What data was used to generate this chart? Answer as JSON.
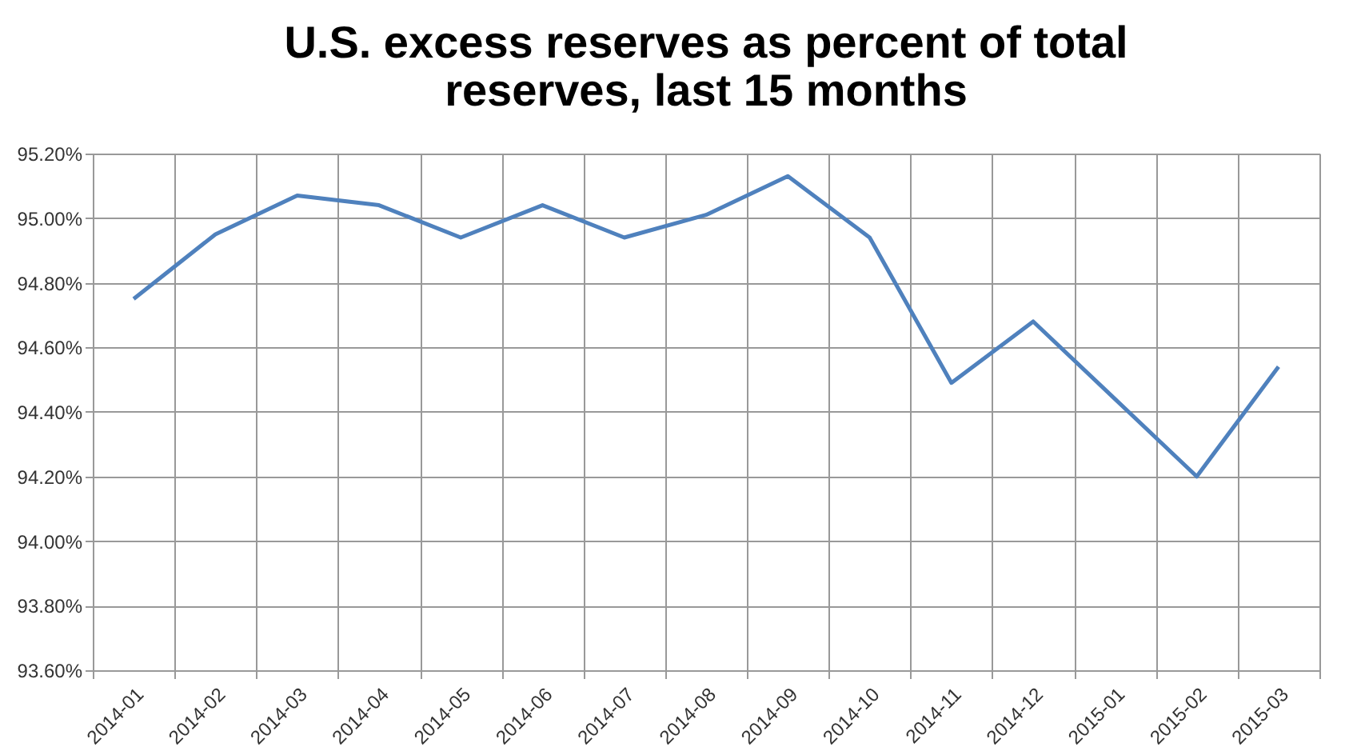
{
  "chart_data": {
    "type": "line",
    "title": [
      "U.S. excess reserves as percent of total",
      "reserves, last 15 months"
    ],
    "categories": [
      "2014-01",
      "2014-02",
      "2014-03",
      "2014-04",
      "2014-05",
      "2014-06",
      "2014-07",
      "2014-08",
      "2014-09",
      "2014-10",
      "2014-11",
      "2014-12",
      "2015-01",
      "2015-02",
      "2015-03"
    ],
    "series": [
      {
        "color": "#4f81bd",
        "values": [
          94.75,
          94.95,
          95.07,
          95.04,
          94.94,
          95.04,
          94.94,
          95.01,
          95.13,
          94.94,
          94.49,
          94.68,
          94.44,
          94.2,
          94.54
        ]
      }
    ],
    "ylim": [
      93.6,
      95.2
    ],
    "yticks": [
      {
        "value": 93.6,
        "label": "93.60%"
      },
      {
        "value": 93.8,
        "label": "93.80%"
      },
      {
        "value": 94.0,
        "label": "94.00%"
      },
      {
        "value": 94.2,
        "label": "94.20%"
      },
      {
        "value": 94.4,
        "label": "94.40%"
      },
      {
        "value": 94.6,
        "label": "94.60%"
      },
      {
        "value": 94.8,
        "label": "94.80%"
      },
      {
        "value": 95.0,
        "label": "95.00%"
      },
      {
        "value": 95.2,
        "label": "95.20%"
      }
    ],
    "grid": true,
    "marker": "none",
    "line_style": "solid"
  }
}
